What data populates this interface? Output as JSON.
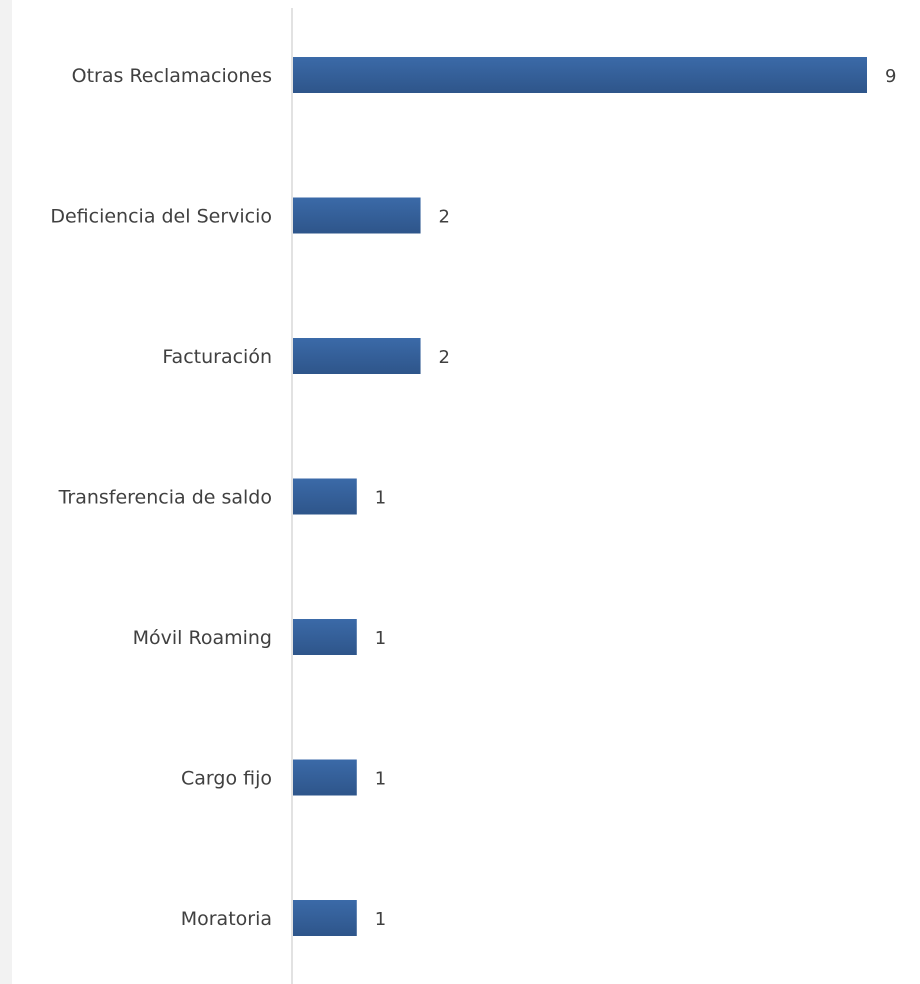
{
  "chart_data": {
    "type": "bar",
    "orientation": "horizontal",
    "categories": [
      "Otras Reclamaciones",
      "Deficiencia del Servicio",
      "Facturación",
      "Transferencia de saldo",
      "Móvil Roaming",
      "Cargo fijo",
      "Moratoria"
    ],
    "values": [
      9,
      2,
      2,
      1,
      1,
      1,
      1
    ],
    "data_labels": [
      "9",
      "2",
      "2",
      "1",
      "1",
      "1",
      "1"
    ],
    "title": "",
    "xlabel": "",
    "ylabel": "",
    "xlim": [
      0,
      9
    ],
    "grid": false,
    "legend": "none",
    "bar_color": "#3b6aa8",
    "bar_color_dark": "#2e558a",
    "axis_color": "#d9d9d9",
    "text_color": "#404040"
  }
}
